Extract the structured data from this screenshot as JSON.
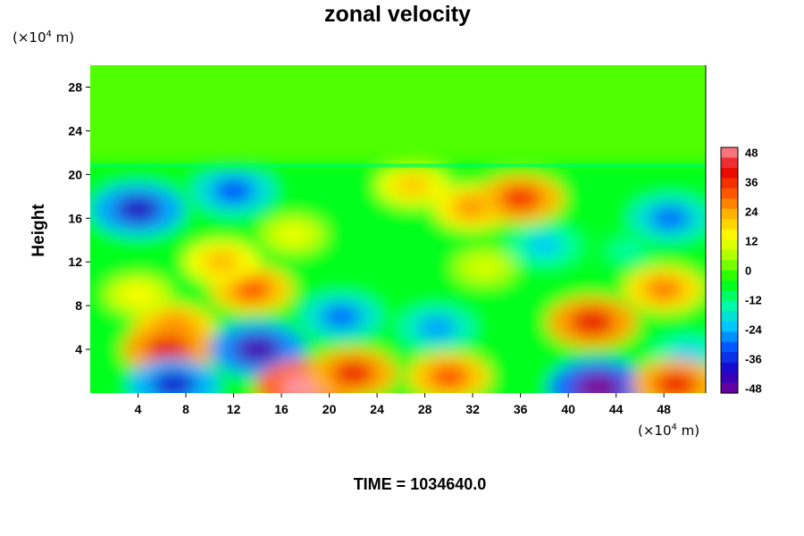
{
  "chart_data": {
    "type": "heatmap",
    "title": "zonal velocity",
    "ylabel": "Height",
    "xlabel": "",
    "x_unit": {
      "prefix": "(×10",
      "exp": "4",
      "suffix": " m)"
    },
    "y_unit": {
      "prefix": "(×10",
      "exp": "4",
      "suffix": " m)"
    },
    "xlim": [
      0,
      51.5
    ],
    "ylim": [
      0,
      30
    ],
    "xticks": [
      4,
      8,
      12,
      16,
      20,
      24,
      28,
      32,
      36,
      40,
      44,
      48
    ],
    "yticks": [
      4,
      8,
      12,
      16,
      20,
      24,
      28
    ],
    "colorbar": {
      "ticks": [
        48,
        36,
        24,
        12,
        0,
        -12,
        -24,
        -36,
        -48
      ],
      "range": [
        -50,
        50
      ],
      "colormap": [
        "#7a0096",
        "#1c00c8",
        "#0052ff",
        "#00c8ff",
        "#00ffa0",
        "#00ff00",
        "#a0ff00",
        "#ffff00",
        "#ffb400",
        "#ff5000",
        "#e60000",
        "#ff96a0"
      ]
    },
    "grid": false,
    "annotation": "TIME = 1034640.0",
    "features": [
      {
        "x": 7,
        "y": 6,
        "value": 30
      },
      {
        "x": 6.5,
        "y": 4,
        "value": 40
      },
      {
        "x": 13.5,
        "y": 9.5,
        "value": 32
      },
      {
        "x": 11,
        "y": 12,
        "value": 22
      },
      {
        "x": 14,
        "y": 4,
        "value": -45
      },
      {
        "x": 18,
        "y": 0.5,
        "value": 50
      },
      {
        "x": 22,
        "y": 1.8,
        "value": 38
      },
      {
        "x": 30,
        "y": 1.5,
        "value": 32
      },
      {
        "x": 42,
        "y": 6.5,
        "value": 40
      },
      {
        "x": 42.5,
        "y": 0.5,
        "value": -50
      },
      {
        "x": 7,
        "y": 0.8,
        "value": -40
      },
      {
        "x": 4,
        "y": 16.8,
        "value": -42
      },
      {
        "x": 12,
        "y": 18.5,
        "value": -32
      },
      {
        "x": 21,
        "y": 7,
        "value": -30
      },
      {
        "x": 29,
        "y": 6,
        "value": -26
      },
      {
        "x": 32,
        "y": 17,
        "value": 26
      },
      {
        "x": 36,
        "y": 17.8,
        "value": 36
      },
      {
        "x": 27,
        "y": 19,
        "value": 20
      },
      {
        "x": 38,
        "y": 13.5,
        "value": -22
      },
      {
        "x": 48.5,
        "y": 16,
        "value": -30
      },
      {
        "x": 48,
        "y": 9.5,
        "value": 28
      },
      {
        "x": 50,
        "y": 3.5,
        "value": -22
      },
      {
        "x": 49,
        "y": 0.8,
        "value": 38
      },
      {
        "x": 4,
        "y": 9,
        "value": 14
      },
      {
        "x": 33,
        "y": 11.5,
        "value": 10
      },
      {
        "x": 45,
        "y": 13,
        "value": -14
      },
      {
        "x": 17,
        "y": 14.5,
        "value": 12
      }
    ]
  }
}
